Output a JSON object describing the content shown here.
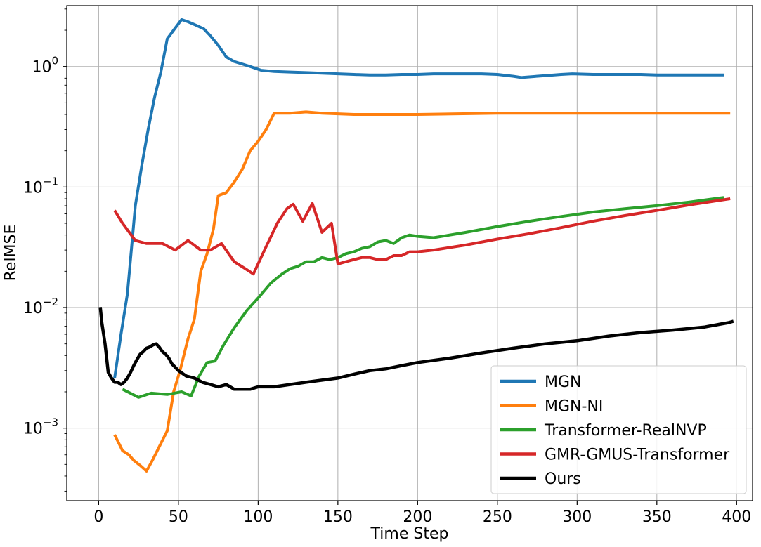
{
  "chart_data": {
    "type": "line",
    "xlabel": "Time Step",
    "ylabel": "RelMSE",
    "xlim": [
      -20,
      410
    ],
    "ylim": [
      0.00025,
      3.2
    ],
    "y_scale": "log",
    "x_ticks": [
      0,
      50,
      100,
      150,
      200,
      250,
      300,
      350,
      400
    ],
    "x_tick_labels": [
      "0",
      "50",
      "100",
      "150",
      "200",
      "250",
      "300",
      "350",
      "400"
    ],
    "y_ticks": [
      0.001,
      0.01,
      0.1,
      1
    ],
    "y_tick_labels": [
      {
        "base": "10",
        "exp": "−3"
      },
      {
        "base": "10",
        "exp": "−2"
      },
      {
        "base": "10",
        "exp": "−1"
      },
      {
        "base": "10",
        "exp": "0"
      }
    ],
    "grid": true,
    "legend_position": "lower-right",
    "series": [
      {
        "name": "MGN",
        "color": "#1f77b4",
        "x": [
          10,
          14,
          18,
          23,
          27,
          31,
          35,
          39,
          43,
          47,
          52,
          56,
          61,
          66,
          70,
          75,
          80,
          85,
          90,
          95,
          102,
          110,
          120,
          130,
          140,
          150,
          160,
          170,
          180,
          190,
          200,
          210,
          220,
          230,
          240,
          250,
          260,
          265,
          270,
          280,
          290,
          297,
          310,
          320,
          330,
          340,
          350,
          360,
          370,
          380,
          392
        ],
        "y": [
          0.0026,
          0.006,
          0.013,
          0.07,
          0.15,
          0.3,
          0.55,
          0.9,
          1.7,
          2.0,
          2.45,
          2.35,
          2.2,
          2.05,
          1.8,
          1.5,
          1.2,
          1.1,
          1.05,
          1.0,
          0.93,
          0.91,
          0.9,
          0.89,
          0.88,
          0.87,
          0.86,
          0.85,
          0.85,
          0.86,
          0.86,
          0.87,
          0.87,
          0.87,
          0.87,
          0.86,
          0.83,
          0.81,
          0.82,
          0.84,
          0.86,
          0.87,
          0.86,
          0.86,
          0.86,
          0.86,
          0.85,
          0.85,
          0.85,
          0.85,
          0.85
        ]
      },
      {
        "name": "MGN-NI",
        "color": "#ff7f0e",
        "x": [
          10,
          15,
          19,
          22,
          26,
          30,
          34,
          38,
          43,
          47,
          51,
          56,
          60,
          64,
          68,
          72,
          75,
          80,
          85,
          90,
          95,
          100,
          105,
          110,
          120,
          130,
          140,
          150,
          160,
          200,
          250,
          300,
          350,
          396
        ],
        "y": [
          0.00088,
          0.00065,
          0.0006,
          0.00054,
          0.00049,
          0.00044,
          0.00055,
          0.0007,
          0.00095,
          0.002,
          0.003,
          0.0055,
          0.008,
          0.02,
          0.028,
          0.045,
          0.085,
          0.09,
          0.11,
          0.14,
          0.2,
          0.24,
          0.3,
          0.41,
          0.41,
          0.42,
          0.41,
          0.405,
          0.4,
          0.4,
          0.41,
          0.41,
          0.41,
          0.41
        ]
      },
      {
        "name": "Transformer-RealNVP",
        "color": "#2ca02c",
        "x": [
          15,
          25,
          33,
          43,
          52,
          58,
          63,
          68,
          73,
          78,
          85,
          93,
          100,
          108,
          115,
          120,
          125,
          130,
          135,
          140,
          145,
          150,
          155,
          160,
          165,
          170,
          175,
          180,
          185,
          190,
          195,
          200,
          210,
          230,
          250,
          270,
          290,
          310,
          330,
          350,
          370,
          392
        ],
        "y": [
          0.0021,
          0.0018,
          0.00195,
          0.0019,
          0.002,
          0.00185,
          0.0027,
          0.0035,
          0.0036,
          0.0048,
          0.0068,
          0.0095,
          0.012,
          0.016,
          0.019,
          0.021,
          0.022,
          0.024,
          0.024,
          0.026,
          0.025,
          0.026,
          0.028,
          0.029,
          0.031,
          0.032,
          0.035,
          0.036,
          0.034,
          0.038,
          0.04,
          0.039,
          0.038,
          0.042,
          0.047,
          0.052,
          0.057,
          0.062,
          0.066,
          0.07,
          0.075,
          0.082
        ]
      },
      {
        "name": "GMR-GMUS-Transformer",
        "color": "#d62728",
        "x": [
          10,
          15,
          23,
          30,
          40,
          48,
          56,
          64,
          70,
          77,
          85,
          92,
          97,
          105,
          112,
          118,
          122,
          128,
          134,
          140,
          146,
          150,
          155,
          160,
          165,
          170,
          175,
          180,
          185,
          190,
          195,
          200,
          210,
          230,
          250,
          270,
          290,
          310,
          330,
          350,
          370,
          396
        ],
        "y": [
          0.064,
          0.05,
          0.036,
          0.034,
          0.034,
          0.03,
          0.036,
          0.03,
          0.03,
          0.034,
          0.024,
          0.021,
          0.019,
          0.032,
          0.05,
          0.066,
          0.072,
          0.052,
          0.073,
          0.042,
          0.05,
          0.023,
          0.024,
          0.025,
          0.026,
          0.026,
          0.025,
          0.025,
          0.027,
          0.027,
          0.029,
          0.029,
          0.03,
          0.033,
          0.037,
          0.041,
          0.046,
          0.052,
          0.058,
          0.064,
          0.071,
          0.08
        ]
      },
      {
        "name": "Ours",
        "color": "#000000",
        "x": [
          1,
          2,
          4,
          6,
          8,
          10,
          12,
          14,
          16,
          18,
          20,
          22,
          24,
          26,
          28,
          30,
          32,
          34,
          36,
          38,
          40,
          42,
          44,
          46,
          48,
          50,
          55,
          60,
          65,
          70,
          75,
          80,
          85,
          90,
          95,
          100,
          110,
          120,
          130,
          140,
          150,
          160,
          170,
          180,
          190,
          200,
          220,
          240,
          260,
          280,
          300,
          320,
          340,
          360,
          380,
          390,
          395,
          398
        ],
        "y": [
          0.0101,
          0.0075,
          0.005,
          0.0029,
          0.0026,
          0.0024,
          0.0024,
          0.0023,
          0.0024,
          0.0026,
          0.0029,
          0.0033,
          0.0037,
          0.0041,
          0.0043,
          0.0046,
          0.0047,
          0.0049,
          0.005,
          0.0047,
          0.0043,
          0.0041,
          0.0038,
          0.0034,
          0.0032,
          0.003,
          0.0027,
          0.0026,
          0.0024,
          0.0023,
          0.0022,
          0.0023,
          0.0021,
          0.0021,
          0.0021,
          0.0022,
          0.0022,
          0.0023,
          0.0024,
          0.0025,
          0.0026,
          0.0028,
          0.003,
          0.0031,
          0.0033,
          0.0035,
          0.0038,
          0.0042,
          0.0046,
          0.005,
          0.0053,
          0.0058,
          0.0062,
          0.0065,
          0.0069,
          0.0073,
          0.0075,
          0.0077
        ]
      }
    ]
  }
}
